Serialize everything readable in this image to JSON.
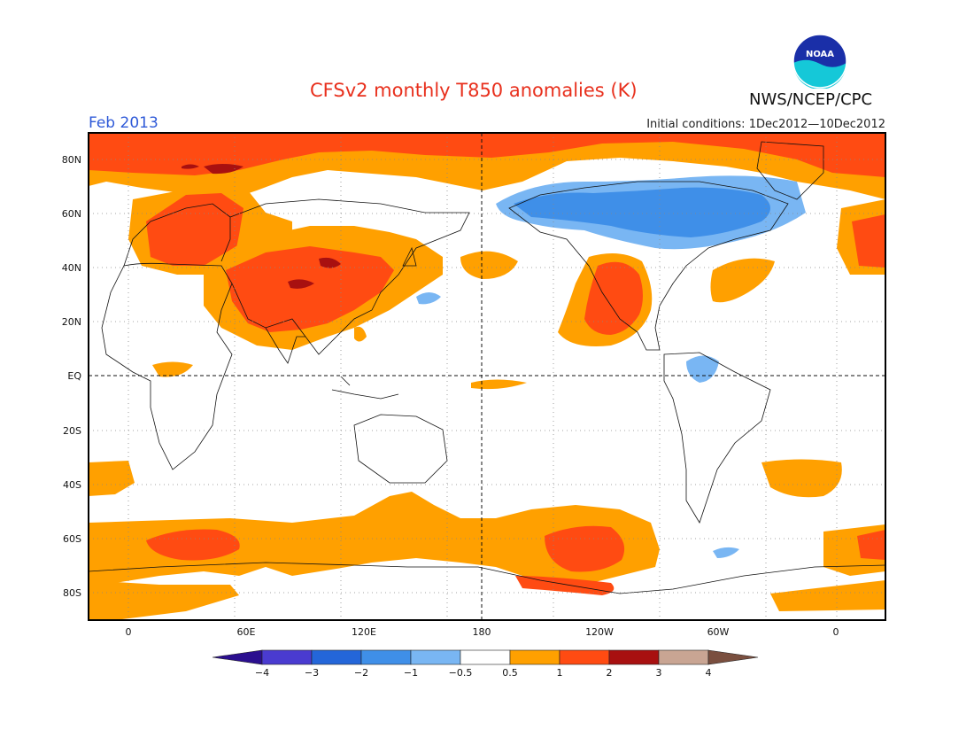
{
  "header": {
    "title": "CFSv2 monthly T850 anomalies (K)",
    "month": "Feb 2013",
    "initial_conditions": "Initial conditions: 1Dec2012—10Dec2012",
    "agency": "NWS/NCEP/CPC",
    "logo_text": "NOAA"
  },
  "map": {
    "lat_ticks": [
      "80N",
      "60N",
      "40N",
      "20N",
      "EQ",
      "20S",
      "40S",
      "60S",
      "80S"
    ],
    "lon_ticks": [
      "0",
      "60E",
      "120E",
      "180",
      "120W",
      "60W",
      "0"
    ]
  },
  "colorbar": {
    "labels": [
      "−4",
      "−3",
      "−2",
      "−1",
      "−0.5",
      "0.5",
      "1",
      "2",
      "3",
      "4"
    ],
    "colors": [
      "#2b0f8f",
      "#4a3bd0",
      "#2466d9",
      "#3f8fe8",
      "#79b6f3",
      "#ffffff",
      "#ffa000",
      "#ff4b12",
      "#a81010",
      "#c9a593",
      "#7a4f3f"
    ]
  },
  "colors": {
    "orange": "#ffa000",
    "red": "#ff4b12",
    "darkred": "#a81010",
    "lightblue": "#79b6f3",
    "blue": "#3f8fe8"
  }
}
